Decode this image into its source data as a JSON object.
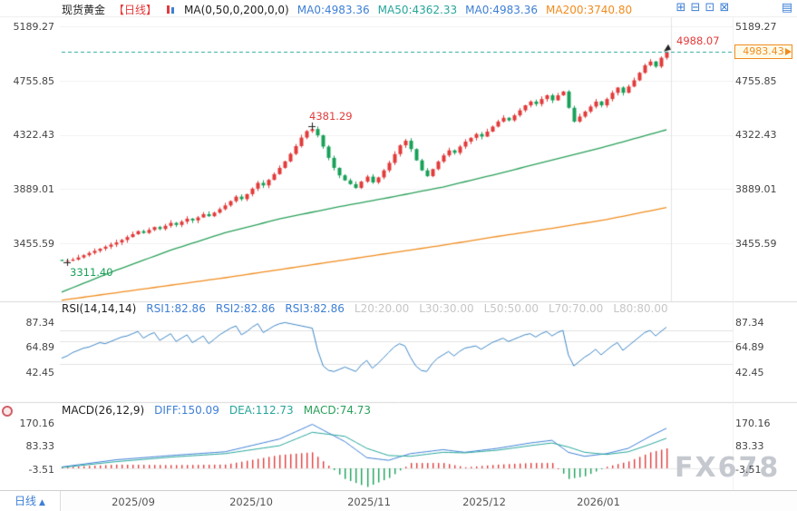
{
  "header": {
    "title": "现货黄金",
    "period_tag": "【日线】",
    "ma_settings": "MA(0,50,0,200,0,0)",
    "ma_values": [
      {
        "label": "MA0:4983.36",
        "color": "#3E7FD6"
      },
      {
        "label": "MA50:4362.33",
        "color": "#26a69a"
      },
      {
        "label": "MA0:4983.36",
        "color": "#3E7FD6"
      },
      {
        "label": "MA200:3740.80",
        "color": "#f08c1e"
      }
    ],
    "toolbar_icons": [
      {
        "name": "add-panel-icon",
        "glyph": "⊞"
      },
      {
        "name": "grid-layout-icon",
        "glyph": "⊟"
      },
      {
        "name": "split-view-icon",
        "glyph": "⊡"
      },
      {
        "name": "new-window-icon",
        "glyph": "⊠"
      },
      {
        "name": "quote-board-icon",
        "glyph": "▤"
      }
    ]
  },
  "main_chart": {
    "y_ticks": [
      "5189.27",
      "4755.85",
      "4322.43",
      "3889.01",
      "3455.59"
    ],
    "annotations": {
      "high": "4988.07",
      "peak": "4381.29",
      "low": "3311.40",
      "last_price": "4983.43"
    }
  },
  "rsi_panel": {
    "title": "RSI(14,14,14)",
    "values": [
      {
        "label": "RSI1:82.86",
        "color": "#3E7FD6"
      },
      {
        "label": "RSI2:82.86",
        "color": "#3E7FD6"
      },
      {
        "label": "RSI3:82.86",
        "color": "#3E7FD6"
      }
    ],
    "levels": [
      {
        "label": "L20:20.00"
      },
      {
        "label": "L30:30.00"
      },
      {
        "label": "L50:50.00"
      },
      {
        "label": "L70:70.00"
      },
      {
        "label": "L80:80.00"
      }
    ],
    "y_ticks": [
      "87.34",
      "64.89",
      "42.45"
    ]
  },
  "macd_panel": {
    "title": "MACD(26,12,9)",
    "values": [
      {
        "label": "DIFF:150.09",
        "color": "#3E7FD6"
      },
      {
        "label": "DEA:112.73",
        "color": "#26a69a"
      },
      {
        "label": "MACD:74.73",
        "color": "#2aa05a"
      }
    ],
    "y_ticks": [
      "170.16",
      "83.33",
      "-3.51"
    ]
  },
  "footer": {
    "period_button": "日线",
    "period_arrow": "▲",
    "x_labels": [
      "2025/09",
      "2025/10",
      "2025/11",
      "2025/12",
      "2026/01"
    ]
  },
  "watermark": "FX678",
  "colors": {
    "up": "#e23b3b",
    "down": "#18a058",
    "ma50": "#2aa05a",
    "ma200": "#f08c1e",
    "accent_blue": "#3E7FD6",
    "teal": "#26a69a",
    "last_price_line": "#26a69a",
    "price_box": "#f08c1e",
    "annotation_red": "#e23b3b",
    "annotation_green": "#18a058",
    "level_gray": "#c6c6c6",
    "grid": "#f1f1f1"
  },
  "chart_data": {
    "type": "candlestick",
    "symbol": "现货黄金",
    "period": "日线",
    "x_ticks": [
      {
        "label": "2025/09",
        "index": 9
      },
      {
        "label": "2025/10",
        "index": 31
      },
      {
        "label": "2025/11",
        "index": 53
      },
      {
        "label": "2025/12",
        "index": 75
      },
      {
        "label": "2026/01",
        "index": 97
      }
    ],
    "y_tick_values": [
      5189.27,
      4755.85,
      4322.43,
      3889.01,
      3455.59
    ],
    "first_open": 3322,
    "closes": [
      3315,
      3316,
      3325,
      3342,
      3360,
      3378,
      3395,
      3412,
      3428,
      3445,
      3462,
      3482,
      3505,
      3528,
      3552,
      3538,
      3562,
      3585,
      3570,
      3595,
      3618,
      3602,
      3628,
      3652,
      3638,
      3662,
      3688,
      3672,
      3700,
      3728,
      3758,
      3792,
      3828,
      3808,
      3848,
      3892,
      3938,
      3918,
      3962,
      4008,
      4058,
      4110,
      4170,
      4232,
      4300,
      4352,
      4368,
      4318,
      4228,
      4138,
      4058,
      3998,
      3958,
      3928,
      3898,
      3948,
      3988,
      3942,
      3982,
      4038,
      4098,
      4168,
      4238,
      4275,
      4208,
      4118,
      4038,
      3992,
      4048,
      4108,
      4158,
      4198,
      4178,
      4228,
      4268,
      4298,
      4328,
      4308,
      4348,
      4388,
      4428,
      4458,
      4438,
      4478,
      4518,
      4558,
      4588,
      4568,
      4608,
      4638,
      4598,
      4638,
      4668,
      4538,
      4428,
      4468,
      4508,
      4548,
      4588,
      4558,
      4608,
      4658,
      4700,
      4658,
      4708,
      4758,
      4818,
      4878,
      4908,
      4868,
      4938,
      4983.43
    ],
    "last_price": 4983.43,
    "low_marker": {
      "index": 1,
      "value": 3311.4
    },
    "peak_marker": {
      "index": 46,
      "value": 4381.29
    },
    "high_marker": {
      "index": 111,
      "value": 4988.07
    },
    "ma50": {
      "last": 4362.33,
      "anchors": [
        [
          0,
          3065
        ],
        [
          10,
          3240
        ],
        [
          20,
          3400
        ],
        [
          30,
          3540
        ],
        [
          40,
          3650
        ],
        [
          50,
          3740
        ],
        [
          60,
          3820
        ],
        [
          70,
          3905
        ],
        [
          80,
          4010
        ],
        [
          90,
          4120
        ],
        [
          100,
          4230
        ],
        [
          111,
          4362.33
        ]
      ]
    },
    "ma200": {
      "last": 3740.8,
      "anchors": [
        [
          0,
          3000
        ],
        [
          10,
          3060
        ],
        [
          20,
          3120
        ],
        [
          30,
          3180
        ],
        [
          40,
          3245
        ],
        [
          50,
          3310
        ],
        [
          60,
          3375
        ],
        [
          70,
          3440
        ],
        [
          80,
          3510
        ],
        [
          90,
          3575
        ],
        [
          100,
          3645
        ],
        [
          111,
          3740.8
        ]
      ]
    },
    "rsi": {
      "ticks": [
        87.34,
        64.89,
        42.45
      ],
      "levels": [
        80,
        70,
        50
      ],
      "last": 82.86,
      "values": [
        55,
        57,
        60,
        62,
        64,
        65,
        67,
        69,
        68,
        70,
        72,
        74,
        75,
        77,
        79,
        73,
        76,
        78,
        71,
        74,
        77,
        70,
        73,
        76,
        69,
        72,
        75,
        68,
        72,
        76,
        79,
        82,
        84,
        76,
        79,
        83,
        86,
        78,
        81,
        84,
        86,
        87,
        86,
        85,
        84,
        83,
        82,
        62,
        48,
        44,
        43,
        45,
        47,
        45,
        43,
        49,
        53,
        46,
        50,
        55,
        60,
        65,
        68,
        66,
        56,
        48,
        44,
        43,
        50,
        55,
        58,
        61,
        57,
        61,
        64,
        65,
        66,
        63,
        66,
        69,
        71,
        73,
        70,
        72,
        74,
        76,
        77,
        74,
        77,
        79,
        75,
        78,
        80,
        58,
        48,
        52,
        56,
        59,
        63,
        58,
        62,
        66,
        69,
        62,
        66,
        70,
        74,
        78,
        80,
        75,
        79,
        82.86
      ]
    },
    "macd": {
      "ticks": [
        170.16,
        83.33,
        -3.51
      ],
      "last": {
        "diff": 150.09,
        "dea": 112.73,
        "macd": 74.73
      },
      "diff_anchors": [
        [
          0,
          5
        ],
        [
          10,
          32
        ],
        [
          20,
          48
        ],
        [
          30,
          62
        ],
        [
          40,
          110
        ],
        [
          46,
          165
        ],
        [
          52,
          100
        ],
        [
          56,
          40
        ],
        [
          60,
          30
        ],
        [
          64,
          55
        ],
        [
          70,
          70
        ],
        [
          74,
          60
        ],
        [
          80,
          75
        ],
        [
          86,
          95
        ],
        [
          90,
          105
        ],
        [
          93,
          60
        ],
        [
          96,
          45
        ],
        [
          100,
          55
        ],
        [
          104,
          75
        ],
        [
          108,
          120
        ],
        [
          111,
          150.09
        ]
      ],
      "dea_anchors": [
        [
          0,
          3
        ],
        [
          10,
          25
        ],
        [
          20,
          42
        ],
        [
          30,
          55
        ],
        [
          40,
          85
        ],
        [
          46,
          135
        ],
        [
          52,
          120
        ],
        [
          56,
          75
        ],
        [
          60,
          48
        ],
        [
          64,
          45
        ],
        [
          70,
          60
        ],
        [
          74,
          58
        ],
        [
          80,
          68
        ],
        [
          86,
          85
        ],
        [
          90,
          95
        ],
        [
          93,
          80
        ],
        [
          96,
          60
        ],
        [
          100,
          52
        ],
        [
          104,
          62
        ],
        [
          108,
          90
        ],
        [
          111,
          112.73
        ]
      ]
    }
  }
}
